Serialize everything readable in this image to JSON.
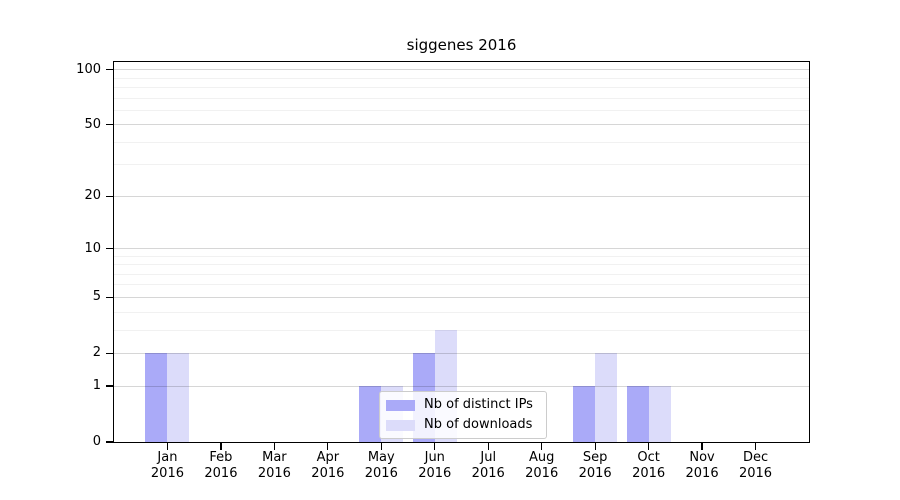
{
  "chart_data": {
    "type": "bar",
    "title": "siggenes 2016",
    "categories": [
      "Jan 2016",
      "Feb 2016",
      "Mar 2016",
      "Apr 2016",
      "May 2016",
      "Jun 2016",
      "Jul 2016",
      "Aug 2016",
      "Sep 2016",
      "Oct 2016",
      "Nov 2016",
      "Dec 2016"
    ],
    "series": [
      {
        "name": "Nb of distinct IPs",
        "color": "#aaaaf8",
        "values": [
          2,
          0,
          0,
          0,
          1,
          2,
          0,
          0,
          1,
          1,
          0,
          0
        ]
      },
      {
        "name": "Nb of downloads",
        "color": "#dcdcfa",
        "values": [
          2,
          0,
          0,
          0,
          1,
          3,
          0,
          0,
          2,
          1,
          0,
          0
        ]
      }
    ],
    "xlabel": "",
    "ylabel": "",
    "yscale": "log1p",
    "ylim": [
      0,
      110
    ],
    "ytick_values": [
      0,
      1,
      2,
      5,
      10,
      20,
      50,
      100
    ],
    "ytick_labels": [
      "0",
      "1",
      "2",
      "5",
      "10",
      "20",
      "50",
      "100"
    ],
    "yminor_values": [
      3,
      4,
      6,
      7,
      8,
      9,
      30,
      40,
      60,
      70,
      80,
      90
    ],
    "grid": "horizontal",
    "legend_position": "lower center-right inside plot",
    "colors": {
      "axis": "#000000",
      "major_grid": "rgba(0,0,0,0.16)",
      "minor_grid": "rgba(0,0,0,0.055)",
      "legend_border": "#cccccc"
    }
  }
}
